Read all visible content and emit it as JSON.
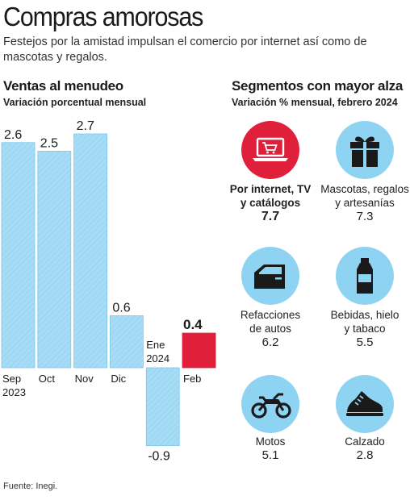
{
  "header": {
    "title": "Compras amorosas",
    "subtitle": "Festejos por la amistad impulsan el comercio por internet así como de mascotas y regalos."
  },
  "left": {
    "title": "Ventas al menudeo",
    "subtitle": "Variación porcentual mensual"
  },
  "right": {
    "title": "Segmentos con mayor alza",
    "subtitle": "Variación % mensual, febrero 2024"
  },
  "colors": {
    "bar": "#a6dcf5",
    "bar_stroke": "#7ec6ea",
    "highlight": "#e0203a",
    "icon_bg": "#8fd3f3"
  },
  "chart_data": {
    "type": "bar",
    "categories": [
      "Sep 2023",
      "Oct",
      "Nov",
      "Dic",
      "Ene 2024",
      "Feb"
    ],
    "tick_labels": [
      [
        "Sep",
        "2023"
      ],
      [
        "Oct"
      ],
      [
        "Nov"
      ],
      [
        "Dic"
      ],
      [
        "Ene",
        "2024"
      ],
      [
        "Feb"
      ]
    ],
    "values": [
      2.6,
      2.5,
      2.7,
      0.6,
      -0.9,
      0.4
    ],
    "value_labels": [
      "2.6",
      "2.5",
      "2.7",
      "0.6",
      "-0.9",
      "0.4"
    ],
    "highlight_index": 5,
    "ylim": [
      -0.9,
      2.7
    ],
    "title": "",
    "xlabel": "",
    "ylabel": ""
  },
  "segments": [
    {
      "label_lines": [
        "Por internet, TV",
        "y catálogos"
      ],
      "value": "7.7",
      "icon": "laptop-cart-icon",
      "highlight": true
    },
    {
      "label_lines": [
        "Mascotas, regalos",
        "y artesanías"
      ],
      "value": "7.3",
      "icon": "gift-icon",
      "highlight": false
    },
    {
      "label_lines": [
        "Refacciones",
        "de autos"
      ],
      "value": "6.2",
      "icon": "car-door-icon",
      "highlight": false
    },
    {
      "label_lines": [
        "Bebidas, hielo",
        "y tabaco"
      ],
      "value": "5.5",
      "icon": "bottle-icon",
      "highlight": false
    },
    {
      "label_lines": [
        "Motos"
      ],
      "value": "5.1",
      "icon": "motorcycle-icon",
      "highlight": false
    },
    {
      "label_lines": [
        "Calzado"
      ],
      "value": "2.8",
      "icon": "shoe-icon",
      "highlight": false
    }
  ],
  "footer": {
    "source": "Fuente: Inegi."
  }
}
